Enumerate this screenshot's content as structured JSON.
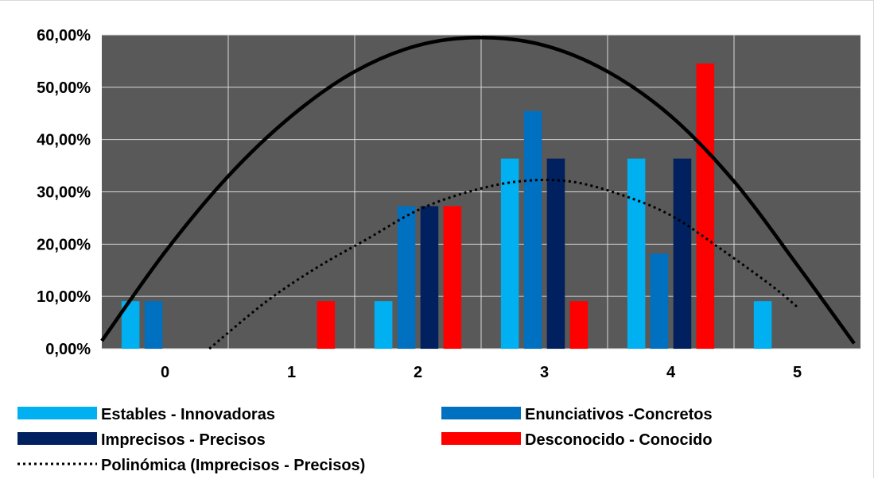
{
  "chart_data": {
    "type": "bar",
    "categories": [
      "0",
      "1",
      "2",
      "3",
      "4",
      "5"
    ],
    "series": [
      {
        "name": "Estables - Innovadoras",
        "color": "#00B0F0",
        "values": [
          9.09,
          0,
          9.09,
          36.36,
          36.36,
          9.09
        ]
      },
      {
        "name": "Enunciativos -Concretos",
        "color": "#0070C0",
        "values": [
          9.09,
          0,
          27.27,
          45.45,
          18.18,
          0
        ]
      },
      {
        "name": "Imprecisos - Precisos",
        "color": "#002060",
        "values": [
          0,
          0,
          27.27,
          36.36,
          36.36,
          0
        ]
      },
      {
        "name": "Desconocido - Conocido",
        "color": "#FF0000",
        "values": [
          0,
          9.09,
          27.27,
          9.09,
          54.55,
          0
        ]
      }
    ],
    "trendlines": [
      {
        "name": "Polinómica (Imprecisos - Precisos)",
        "style": "dotted",
        "color": "#000000",
        "in_legend": true,
        "x": [
          0.35,
          0.8,
          1.2,
          1.6,
          2.0,
          2.4,
          2.8,
          3.2,
          3.6,
          4.0,
          4.4,
          4.8,
          5.0
        ],
        "y": [
          0.0,
          9.0,
          15.5,
          21.0,
          26.5,
          30.0,
          32.0,
          32.0,
          29.5,
          25.5,
          19.0,
          12.0,
          8.0
        ]
      },
      {
        "name": "",
        "style": "solid",
        "color": "#000000",
        "in_legend": false,
        "x": [
          -0.5,
          0.0,
          0.5,
          1.0,
          1.5,
          2.0,
          2.5,
          3.0,
          3.5,
          4.0,
          4.5,
          5.0,
          5.45
        ],
        "y": [
          1.5,
          18.5,
          33.0,
          44.5,
          53.0,
          58.0,
          59.5,
          58.0,
          53.0,
          44.5,
          32.0,
          16.0,
          1.0
        ]
      }
    ],
    "y_axis": {
      "ticks": [
        "0,00%",
        "10,00%",
        "20,00%",
        "30,00%",
        "40,00%",
        "50,00%",
        "60,00%"
      ],
      "ylim": [
        0,
        60
      ]
    },
    "xlabel": "",
    "ylabel": "",
    "title": "",
    "plot_background": "#595959",
    "grid": true,
    "grid_color": "#d9d9d9",
    "legend_position": "bottom"
  }
}
